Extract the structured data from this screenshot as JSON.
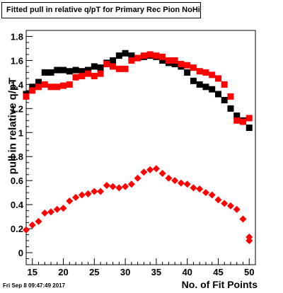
{
  "title": "Fitted pull in relative q/pT for Primary Rec Pion NoHits",
  "footer": "Fri Sep  8 09:47:49 2017",
  "chart_data": {
    "type": "scatter",
    "title": "Fitted pull in relative q/pT for Primary Rec Pion NoHits",
    "xlabel": "No. of Fit Points",
    "ylabel": "pull in relative q/pT",
    "xlim": [
      14,
      51
    ],
    "ylim": [
      -0.1,
      1.85
    ],
    "xticks": [
      "15",
      "20",
      "25",
      "30",
      "35",
      "40",
      "45",
      "50"
    ],
    "yticks": [
      "0",
      "0.2",
      "0.4",
      "0.6",
      "0.8",
      "1",
      "1.2",
      "1.4",
      "1.6",
      "1.8"
    ],
    "grid": false,
    "series": [
      {
        "marker": "square",
        "color": "#000000",
        "x": [
          14,
          15,
          16,
          17,
          18,
          19,
          20,
          21,
          22,
          23,
          24,
          25,
          26,
          27,
          28,
          29,
          30,
          31,
          32,
          33,
          34,
          35,
          36,
          37,
          38,
          39,
          40,
          41,
          42,
          43,
          44,
          45,
          46,
          47,
          48,
          49,
          50
        ],
        "y": [
          1.32,
          1.38,
          1.42,
          1.5,
          1.5,
          1.52,
          1.52,
          1.51,
          1.52,
          1.51,
          1.52,
          1.55,
          1.54,
          1.58,
          1.6,
          1.64,
          1.66,
          1.64,
          1.62,
          1.63,
          1.64,
          1.63,
          1.6,
          1.58,
          1.57,
          1.55,
          1.5,
          1.43,
          1.4,
          1.38,
          1.36,
          1.32,
          1.27,
          1.2,
          1.14,
          1.1,
          1.04
        ]
      },
      {
        "marker": "square",
        "color": "#ff0000",
        "x": [
          14,
          15,
          16,
          17,
          18,
          19,
          20,
          21,
          22,
          23,
          24,
          25,
          26,
          27,
          28,
          29,
          30,
          31,
          32,
          33,
          34,
          35,
          36,
          37,
          38,
          39,
          40,
          41,
          42,
          43,
          44,
          45,
          46,
          47,
          48,
          49,
          50
        ],
        "y": [
          1.3,
          1.35,
          1.38,
          1.4,
          1.38,
          1.38,
          1.39,
          1.4,
          1.46,
          1.47,
          1.49,
          1.47,
          1.49,
          1.57,
          1.55,
          1.53,
          1.53,
          1.6,
          1.62,
          1.64,
          1.65,
          1.64,
          1.63,
          1.6,
          1.6,
          1.57,
          1.56,
          1.54,
          1.51,
          1.5,
          1.48,
          1.45,
          1.4,
          1.3,
          1.1,
          1.09,
          1.12
        ]
      },
      {
        "marker": "diamond",
        "color": "#ff0000",
        "x": [
          14,
          15,
          16,
          17,
          18,
          19,
          20,
          21,
          22,
          23,
          24,
          25,
          26,
          27,
          28,
          29,
          30,
          31,
          32,
          33,
          34,
          35,
          36,
          37,
          38,
          39,
          40,
          41,
          42,
          43,
          44,
          45,
          46,
          47,
          48,
          49,
          50
        ],
        "y": [
          0.19,
          0.23,
          0.26,
          0.33,
          0.34,
          0.36,
          0.37,
          0.43,
          0.46,
          0.48,
          0.49,
          0.51,
          0.51,
          0.56,
          0.55,
          0.54,
          0.55,
          0.57,
          0.62,
          0.67,
          0.69,
          0.7,
          0.66,
          0.62,
          0.6,
          0.58,
          0.57,
          0.54,
          0.53,
          0.5,
          0.48,
          0.44,
          0.41,
          0.39,
          0.36,
          0.28,
          0.13
        ]
      },
      {
        "marker": "diamond",
        "color": "#ff0000",
        "x": [
          50
        ],
        "y": [
          0.1
        ]
      }
    ]
  }
}
